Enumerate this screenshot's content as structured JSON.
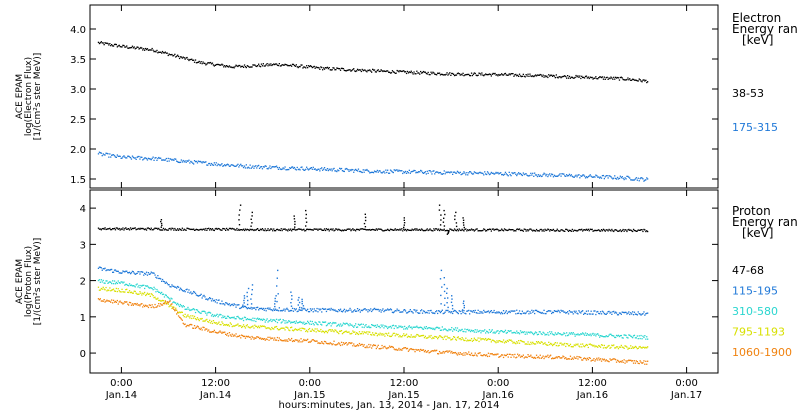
{
  "chart_data": [
    {
      "panel": "electron",
      "type": "scatter",
      "ylabel_lines": [
        "ACE EPAM",
        "log(Electron Flux)",
        "[1/(cm²s ster MeV)]"
      ],
      "ylim": [
        1.35,
        4.4
      ],
      "yticks": [
        1.5,
        2.0,
        2.5,
        3.0,
        3.5,
        4.0
      ],
      "ytick_labels": [
        "1.5",
        "2.0",
        "2.5",
        "3.0",
        "3.5",
        "4.0"
      ],
      "legend_title": [
        "Electron",
        "Energy ran",
        "[keV]"
      ],
      "series": [
        {
          "name": "38-53",
          "color": "#000000",
          "noise": 0.025,
          "points": [
            [
              -3,
              3.78
            ],
            [
              0,
              3.72
            ],
            [
              4,
              3.66
            ],
            [
              10,
              3.45
            ],
            [
              14,
              3.38
            ],
            [
              20,
              3.42
            ],
            [
              26,
              3.35
            ],
            [
              34,
              3.3
            ],
            [
              42,
              3.26
            ],
            [
              48,
              3.25
            ],
            [
              56,
              3.22
            ],
            [
              64,
              3.18
            ],
            [
              67,
              3.14
            ]
          ]
        },
        {
          "name": "175-315",
          "color": "#1f78d8",
          "noise": 0.03,
          "points": [
            [
              -3,
              1.93
            ],
            [
              0,
              1.87
            ],
            [
              4,
              1.85
            ],
            [
              10,
              1.78
            ],
            [
              16,
              1.72
            ],
            [
              24,
              1.68
            ],
            [
              32,
              1.64
            ],
            [
              40,
              1.62
            ],
            [
              48,
              1.6
            ],
            [
              56,
              1.57
            ],
            [
              64,
              1.53
            ],
            [
              67,
              1.5
            ]
          ]
        }
      ]
    },
    {
      "panel": "proton",
      "type": "scatter",
      "ylabel_lines": [
        "ACE EPAM",
        "log(Proton Flux)",
        "[1/(cm²s ster MeV)]"
      ],
      "ylim": [
        -0.55,
        4.5
      ],
      "yticks": [
        0,
        1,
        2,
        3,
        4
      ],
      "ytick_labels": [
        "0",
        "1",
        "2",
        "3",
        "4"
      ],
      "legend_title": [
        "Proton",
        "Energy ran",
        "[keV]"
      ],
      "series": [
        {
          "name": "47-68",
          "color": "#000000",
          "noise": 0.03,
          "points": [
            [
              -3,
              3.45
            ],
            [
              20,
              3.42
            ],
            [
              40,
              3.42
            ],
            [
              67,
              3.4
            ]
          ],
          "spikes": [
            [
              5,
              3.7
            ],
            [
              15,
              4.1
            ],
            [
              16.5,
              3.9
            ],
            [
              22,
              3.8
            ],
            [
              23.5,
              3.95
            ],
            [
              31,
              3.85
            ],
            [
              36,
              3.75
            ],
            [
              40.5,
              4.1
            ],
            [
              41,
              3.95
            ],
            [
              41.5,
              3.3
            ],
            [
              42.5,
              3.9
            ],
            [
              43.5,
              3.75
            ]
          ]
        },
        {
          "name": "115-195",
          "color": "#1f78d8",
          "noise": 0.05,
          "points": [
            [
              -3,
              2.35
            ],
            [
              0,
              2.25
            ],
            [
              4,
              2.2
            ],
            [
              6,
              1.9
            ],
            [
              8,
              1.75
            ],
            [
              12,
              1.45
            ],
            [
              16,
              1.25
            ],
            [
              24,
              1.2
            ],
            [
              32,
              1.2
            ],
            [
              40,
              1.15
            ],
            [
              48,
              1.15
            ],
            [
              56,
              1.15
            ],
            [
              67,
              1.1
            ]
          ],
          "spikes": [
            [
              15.5,
              1.6
            ],
            [
              16,
              1.8
            ],
            [
              16.5,
              1.9
            ],
            [
              19.5,
              1.6
            ],
            [
              19.8,
              2.3
            ],
            [
              21.5,
              1.7
            ],
            [
              22.5,
              1.55
            ],
            [
              23,
              1.5
            ],
            [
              40.6,
              2.3
            ],
            [
              41,
              2.1
            ],
            [
              41.4,
              1.8
            ],
            [
              42,
              1.6
            ],
            [
              43.5,
              1.45
            ]
          ]
        },
        {
          "name": "310-580",
          "color": "#2ad6cf",
          "noise": 0.05,
          "points": [
            [
              -3,
              2.0
            ],
            [
              0,
              1.95
            ],
            [
              4,
              1.8
            ],
            [
              8,
              1.25
            ],
            [
              12,
              1.05
            ],
            [
              16,
              0.95
            ],
            [
              24,
              0.85
            ],
            [
              32,
              0.75
            ],
            [
              40,
              0.7
            ],
            [
              48,
              0.6
            ],
            [
              56,
              0.55
            ],
            [
              67,
              0.45
            ]
          ]
        },
        {
          "name": "795-1193",
          "color": "#d8e000",
          "noise": 0.05,
          "points": [
            [
              -3,
              1.8
            ],
            [
              0,
              1.75
            ],
            [
              4,
              1.6
            ],
            [
              8,
              1.05
            ],
            [
              12,
              0.85
            ],
            [
              16,
              0.75
            ],
            [
              24,
              0.65
            ],
            [
              32,
              0.55
            ],
            [
              40,
              0.45
            ],
            [
              48,
              0.35
            ],
            [
              56,
              0.25
            ],
            [
              67,
              0.15
            ]
          ]
        },
        {
          "name": "1060-1900",
          "color": "#f0820f",
          "noise": 0.05,
          "points": [
            [
              -3,
              1.5
            ],
            [
              0,
              1.4
            ],
            [
              4,
              1.3
            ],
            [
              6,
              1.45
            ],
            [
              8,
              0.8
            ],
            [
              12,
              0.6
            ],
            [
              16,
              0.45
            ],
            [
              24,
              0.35
            ],
            [
              32,
              0.2
            ],
            [
              40,
              0.05
            ],
            [
              48,
              -0.05
            ],
            [
              56,
              -0.1
            ],
            [
              67,
              -0.25
            ]
          ]
        }
      ]
    }
  ],
  "x_axis": {
    "xlim": [
      -4,
      76
    ],
    "ticks": [
      0,
      12,
      24,
      36,
      48,
      60,
      72
    ],
    "major_labels": [
      "0:00",
      "12:00",
      "0:00",
      "12:00",
      "0:00",
      "12:00",
      "0:00"
    ],
    "date_labels": [
      "Jan.14",
      "Jan.14",
      "Jan.15",
      "Jan.15",
      "Jan.16",
      "Jan.16",
      "Jan.17"
    ],
    "title": "hours:minutes, Jan. 13, 2014 - Jan. 17, 2014"
  }
}
